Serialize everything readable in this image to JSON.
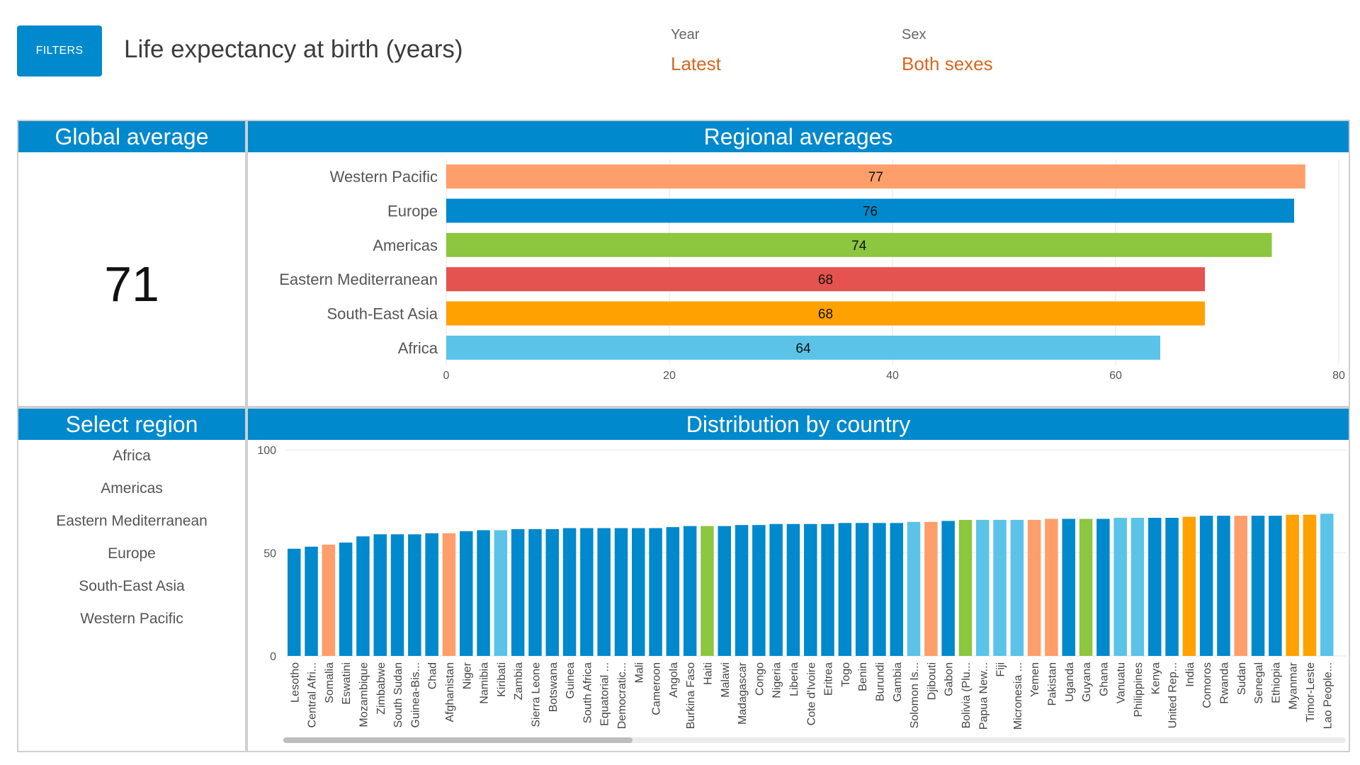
{
  "header": {
    "filters_label": "FILTERS",
    "title": "Life expectancy at birth (years)",
    "year_label": "Year",
    "year_value": "Latest",
    "sex_label": "Sex",
    "sex_value": "Both sexes"
  },
  "global": {
    "title": "Global average",
    "value": "71"
  },
  "region_select": {
    "title": "Select region",
    "items": [
      "Africa",
      "Americas",
      "Eastern Mediterranean",
      "Europe",
      "South-East Asia",
      "Western Pacific"
    ]
  },
  "colors": {
    "header_blue": "#0089cc",
    "filter_orange": "#d9661f",
    "Africa": "#5bc3e8",
    "Americas": "#8dc63f",
    "Eastern Mediterranean": "#e4534f",
    "Europe": "#0089cc",
    "South-East Asia": "#ffa100",
    "Western Pacific": "#fe9e6a"
  },
  "chart_data": [
    {
      "type": "bar",
      "orientation": "horizontal",
      "title": "Regional averages",
      "categories": [
        "Western Pacific",
        "Europe",
        "Americas",
        "Eastern Mediterranean",
        "South-East Asia",
        "Africa"
      ],
      "values": [
        77,
        76,
        74,
        68,
        68,
        64
      ],
      "data_labels": [
        "77",
        "76",
        "74",
        "68",
        "68",
        "64"
      ],
      "xlim": [
        0,
        80
      ],
      "xticks": [
        0,
        20,
        40,
        60,
        80
      ],
      "grid": true
    },
    {
      "type": "bar",
      "title": "Distribution by country",
      "ylim": [
        0,
        100
      ],
      "yticks": [
        0,
        50,
        100
      ],
      "grid": true,
      "categories": [
        "Lesotho",
        "Central Afri...",
        "Somalia",
        "Eswatini",
        "Mozambique",
        "Zimbabwe",
        "South Sudan",
        "Guinea-Bis...",
        "Chad",
        "Afghanistan",
        "Niger",
        "Namibia",
        "Kiribati",
        "Zambia",
        "Sierra Leone",
        "Botswana",
        "Guinea",
        "South Africa",
        "Equatorial ...",
        "Democratic...",
        "Mali",
        "Cameroon",
        "Angola",
        "Burkina Faso",
        "Haiti",
        "Malawi",
        "Madagascar",
        "Congo",
        "Nigeria",
        "Liberia",
        "Cote d'Ivoire",
        "Eritrea",
        "Togo",
        "Benin",
        "Burundi",
        "Gambia",
        "Solomon Is...",
        "Djibouti",
        "Gabon",
        "Bolivia (Plu...",
        "Papua New...",
        "Fiji",
        "Micronesia ...",
        "Yemen",
        "Pakistan",
        "Uganda",
        "Guyana",
        "Ghana",
        "Vanuatu",
        "Philippines",
        "Kenya",
        "United Rep...",
        "India",
        "Comoros",
        "Rwanda",
        "Sudan",
        "Senegal",
        "Ethiopia",
        "Myanmar",
        "Timor-Leste",
        "Lao People..."
      ],
      "values": [
        52,
        53,
        54,
        55,
        58,
        59,
        59,
        59,
        59.5,
        59.5,
        60.5,
        61,
        61,
        61.5,
        61.5,
        61.5,
        62,
        62,
        62,
        62,
        62,
        62,
        62.5,
        63,
        63,
        63,
        63.5,
        63.5,
        64,
        64,
        64,
        64,
        64.5,
        64.5,
        64.5,
        64.5,
        65,
        65,
        65.5,
        66,
        66,
        66,
        66,
        66,
        66.5,
        66.5,
        66.5,
        66.5,
        67,
        67,
        67,
        67,
        67.5,
        68,
        68,
        68,
        68,
        68,
        68.5,
        68.5,
        69
      ],
      "regions": [
        "Africa-E",
        "Africa-E",
        "EMR",
        "Africa-E",
        "Africa-E",
        "Africa-E",
        "Africa-E",
        "Africa-E",
        "Africa-E",
        "EMR",
        "Africa-E",
        "Africa-E",
        "WPR",
        "Africa-E",
        "Africa-E",
        "Africa-E",
        "Africa-E",
        "Africa-E",
        "Africa-E",
        "Africa-E",
        "Africa-E",
        "Africa-E",
        "Africa-E",
        "Africa-E",
        "AMR",
        "Africa-E",
        "Africa-E",
        "Africa-E",
        "Africa-E",
        "Africa-E",
        "Africa-E",
        "Africa-E",
        "Africa-E",
        "Africa-E",
        "Africa-E",
        "Africa-E",
        "WPR",
        "EMR",
        "Africa-E",
        "AMR",
        "WPR",
        "WPR",
        "WPR",
        "EMR",
        "EMR",
        "Africa-E",
        "AMR",
        "Africa-E",
        "WPR",
        "WPR",
        "Africa-E",
        "Africa-E",
        "SEAR",
        "Africa-E",
        "Africa-E",
        "EMR",
        "Africa-E",
        "Africa-E",
        "SEAR",
        "SEAR",
        "WPR"
      ],
      "series_colors": {
        "Africa-E": "#0089cc",
        "EMR": "#fe9e6a",
        "WPR": "#5bc3e8",
        "AMR": "#8dc63f",
        "SEAR": "#ffa100"
      }
    }
  ]
}
